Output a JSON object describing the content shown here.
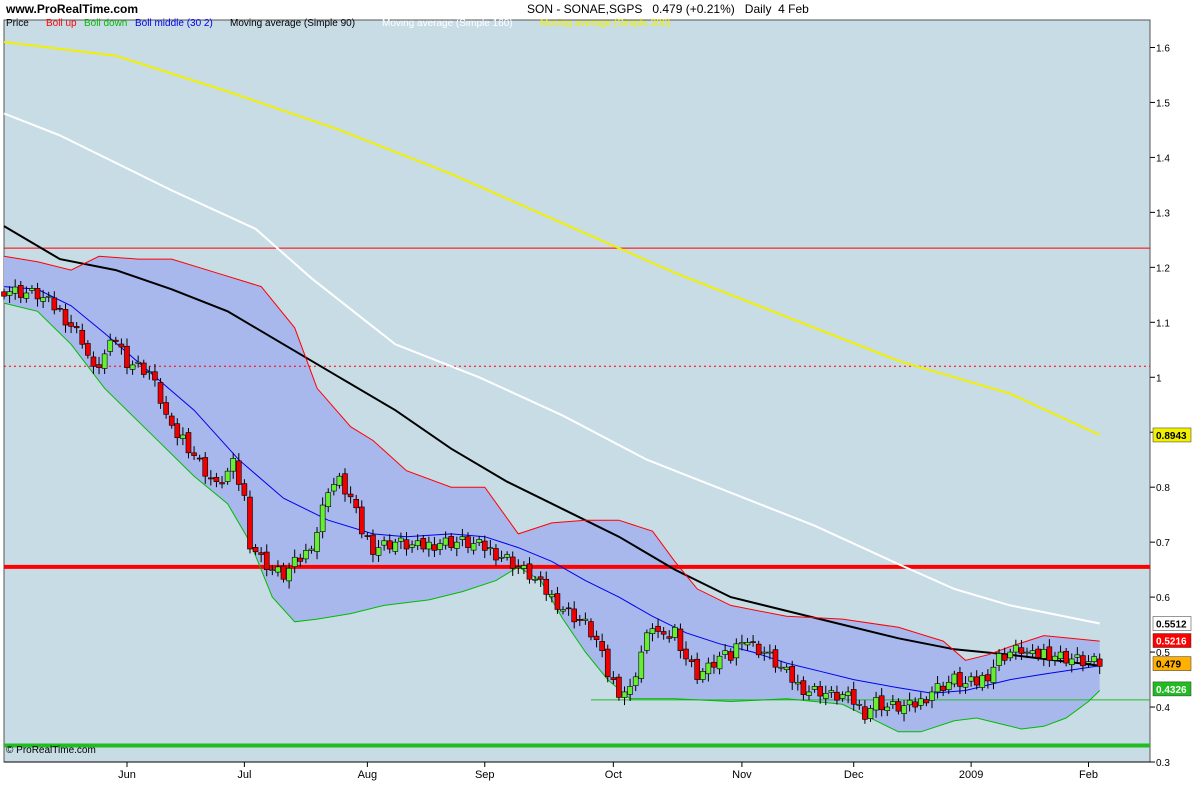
{
  "header": {
    "site": "www.ProRealTime.com",
    "title": "SON - SONAE,SGPS",
    "last": "0.479 (+0.21%)",
    "period": "Daily  4 Feb"
  },
  "watermark": "© ProRealTime.com",
  "legend": {
    "price": "Price",
    "boll_up": "Boll up",
    "boll_down": "Boll down",
    "boll_middle": "Boll middle (30 2)",
    "ma90": "Moving average (Simple 90)",
    "ma160": "Moving average (Simple 160)",
    "ma300": "Moving average (Simple 300)"
  },
  "colors": {
    "background": "#c8dce6",
    "band_fill": "#a8b8ec",
    "boll_up": "#ff0000",
    "boll_down": "#00bb00",
    "boll_middle": "#0000ee",
    "ma90": "#000000",
    "ma160": "#ffffff",
    "ma300": "#f0f000",
    "candle_up": "#66ee33",
    "candle_down": "#ee0000",
    "hline_red": "#ff0000",
    "hline_green": "#22bb22"
  },
  "chart_data": {
    "type": "candlestick",
    "ylim": [
      0.3,
      1.65
    ],
    "y_ticks": [
      "0.3",
      "0.4",
      "0.5",
      "0.6",
      "0.7",
      "0.8",
      "0.9",
      "1",
      "1.1",
      "1.2",
      "1.3",
      "1.4",
      "1.5",
      "1.6"
    ],
    "x_months": [
      {
        "label": "Jun",
        "day": 22
      },
      {
        "label": "Jul",
        "day": 43
      },
      {
        "label": "Aug",
        "day": 65
      },
      {
        "label": "Sep",
        "day": 86
      },
      {
        "label": "Oct",
        "day": 109
      },
      {
        "label": "Nov",
        "day": 132
      },
      {
        "label": "Dec",
        "day": 152
      },
      {
        "label": "2009",
        "day": 173
      },
      {
        "label": "Feb",
        "day": 194
      }
    ],
    "price_labels": {
      "ma300": "0.8943",
      "ma160": "0.5512",
      "boll_up": "0.5216",
      "last": "0.479",
      "boll_down": "0.4326"
    },
    "horizontal_lines": [
      {
        "value": 1.235,
        "style": "solid-thin",
        "color": "red"
      },
      {
        "value": 1.02,
        "style": "dotted",
        "color": "red"
      },
      {
        "value": 0.655,
        "style": "solid-thick",
        "color": "red"
      },
      {
        "value": 0.33,
        "style": "solid-thick",
        "color": "green"
      },
      {
        "value": 0.413,
        "style": "solid-thin",
        "color": "green",
        "from_day": 105
      }
    ],
    "ma300": [
      [
        0,
        1.61
      ],
      [
        20,
        1.585
      ],
      [
        40,
        1.52
      ],
      [
        60,
        1.45
      ],
      [
        80,
        1.37
      ],
      [
        100,
        1.28
      ],
      [
        120,
        1.19
      ],
      [
        140,
        1.11
      ],
      [
        160,
        1.03
      ],
      [
        180,
        0.97
      ],
      [
        196,
        0.895
      ]
    ],
    "ma160": [
      [
        0,
        1.48
      ],
      [
        10,
        1.44
      ],
      [
        20,
        1.39
      ],
      [
        30,
        1.34
      ],
      [
        45,
        1.27
      ],
      [
        55,
        1.18
      ],
      [
        70,
        1.06
      ],
      [
        85,
        1.0
      ],
      [
        100,
        0.93
      ],
      [
        115,
        0.85
      ],
      [
        130,
        0.79
      ],
      [
        145,
        0.73
      ],
      [
        160,
        0.66
      ],
      [
        170,
        0.615
      ],
      [
        180,
        0.585
      ],
      [
        196,
        0.552
      ]
    ],
    "ma90": [
      [
        0,
        1.275
      ],
      [
        10,
        1.215
      ],
      [
        20,
        1.195
      ],
      [
        30,
        1.16
      ],
      [
        40,
        1.12
      ],
      [
        50,
        1.06
      ],
      [
        60,
        1.0
      ],
      [
        70,
        0.94
      ],
      [
        80,
        0.87
      ],
      [
        90,
        0.81
      ],
      [
        100,
        0.76
      ],
      [
        110,
        0.71
      ],
      [
        120,
        0.65
      ],
      [
        130,
        0.6
      ],
      [
        140,
        0.575
      ],
      [
        150,
        0.55
      ],
      [
        160,
        0.525
      ],
      [
        170,
        0.505
      ],
      [
        180,
        0.495
      ],
      [
        196,
        0.475
      ]
    ],
    "boll_up": [
      [
        0,
        1.22
      ],
      [
        6,
        1.21
      ],
      [
        12,
        1.195
      ],
      [
        17,
        1.22
      ],
      [
        24,
        1.215
      ],
      [
        30,
        1.215
      ],
      [
        38,
        1.19
      ],
      [
        46,
        1.165
      ],
      [
        52,
        1.09
      ],
      [
        56,
        0.98
      ],
      [
        62,
        0.91
      ],
      [
        66,
        0.885
      ],
      [
        72,
        0.83
      ],
      [
        80,
        0.8
      ],
      [
        86,
        0.8
      ],
      [
        92,
        0.715
      ],
      [
        98,
        0.735
      ],
      [
        104,
        0.74
      ],
      [
        110,
        0.74
      ],
      [
        116,
        0.72
      ],
      [
        120,
        0.665
      ],
      [
        124,
        0.615
      ],
      [
        130,
        0.585
      ],
      [
        140,
        0.565
      ],
      [
        150,
        0.56
      ],
      [
        160,
        0.545
      ],
      [
        168,
        0.52
      ],
      [
        172,
        0.485
      ],
      [
        176,
        0.495
      ],
      [
        180,
        0.51
      ],
      [
        186,
        0.53
      ],
      [
        196,
        0.52
      ]
    ],
    "boll_mid": [
      [
        0,
        1.165
      ],
      [
        6,
        1.16
      ],
      [
        12,
        1.13
      ],
      [
        18,
        1.08
      ],
      [
        26,
        1.01
      ],
      [
        34,
        0.94
      ],
      [
        42,
        0.85
      ],
      [
        50,
        0.78
      ],
      [
        58,
        0.74
      ],
      [
        66,
        0.715
      ],
      [
        72,
        0.71
      ],
      [
        80,
        0.715
      ],
      [
        86,
        0.71
      ],
      [
        92,
        0.69
      ],
      [
        98,
        0.665
      ],
      [
        104,
        0.63
      ],
      [
        110,
        0.6
      ],
      [
        116,
        0.565
      ],
      [
        122,
        0.535
      ],
      [
        128,
        0.515
      ],
      [
        134,
        0.5
      ],
      [
        140,
        0.48
      ],
      [
        146,
        0.465
      ],
      [
        152,
        0.45
      ],
      [
        160,
        0.435
      ],
      [
        166,
        0.425
      ],
      [
        172,
        0.43
      ],
      [
        180,
        0.45
      ],
      [
        186,
        0.46
      ],
      [
        196,
        0.475
      ]
    ],
    "boll_dn": [
      [
        0,
        1.135
      ],
      [
        6,
        1.12
      ],
      [
        12,
        1.06
      ],
      [
        18,
        0.98
      ],
      [
        26,
        0.9
      ],
      [
        34,
        0.82
      ],
      [
        40,
        0.77
      ],
      [
        44,
        0.7
      ],
      [
        48,
        0.6
      ],
      [
        52,
        0.555
      ],
      [
        56,
        0.56
      ],
      [
        62,
        0.57
      ],
      [
        68,
        0.585
      ],
      [
        76,
        0.595
      ],
      [
        82,
        0.61
      ],
      [
        88,
        0.63
      ],
      [
        92,
        0.655
      ],
      [
        96,
        0.63
      ],
      [
        100,
        0.56
      ],
      [
        104,
        0.5
      ],
      [
        108,
        0.45
      ],
      [
        112,
        0.415
      ],
      [
        120,
        0.415
      ],
      [
        130,
        0.41
      ],
      [
        140,
        0.415
      ],
      [
        150,
        0.405
      ],
      [
        156,
        0.375
      ],
      [
        160,
        0.355
      ],
      [
        164,
        0.355
      ],
      [
        170,
        0.375
      ],
      [
        174,
        0.38
      ],
      [
        178,
        0.37
      ],
      [
        182,
        0.36
      ],
      [
        186,
        0.365
      ],
      [
        190,
        0.38
      ],
      [
        194,
        0.41
      ],
      [
        196,
        0.43
      ]
    ],
    "candle_anchors": [
      [
        0,
        1.16
      ],
      [
        6,
        1.15
      ],
      [
        10,
        1.12
      ],
      [
        14,
        1.07
      ],
      [
        16,
        1.01
      ],
      [
        18,
        1.04
      ],
      [
        20,
        1.07
      ],
      [
        22,
        1.03
      ],
      [
        26,
        1.01
      ],
      [
        28,
        0.96
      ],
      [
        30,
        0.9
      ],
      [
        32,
        0.89
      ],
      [
        36,
        0.83
      ],
      [
        38,
        0.8
      ],
      [
        41,
        0.84
      ],
      [
        43,
        0.78
      ],
      [
        44,
        0.7
      ],
      [
        46,
        0.67
      ],
      [
        48,
        0.65
      ],
      [
        50,
        0.64
      ],
      [
        52,
        0.66
      ],
      [
        54,
        0.68
      ],
      [
        56,
        0.72
      ],
      [
        58,
        0.8
      ],
      [
        60,
        0.81
      ],
      [
        62,
        0.78
      ],
      [
        64,
        0.72
      ],
      [
        66,
        0.69
      ],
      [
        70,
        0.7
      ],
      [
        74,
        0.69
      ],
      [
        78,
        0.7
      ],
      [
        82,
        0.7
      ],
      [
        86,
        0.69
      ],
      [
        90,
        0.67
      ],
      [
        94,
        0.64
      ],
      [
        98,
        0.6
      ],
      [
        100,
        0.58
      ],
      [
        104,
        0.55
      ],
      [
        106,
        0.52
      ],
      [
        108,
        0.46
      ],
      [
        110,
        0.43
      ],
      [
        112,
        0.43
      ],
      [
        114,
        0.5
      ],
      [
        116,
        0.55
      ],
      [
        118,
        0.52
      ],
      [
        120,
        0.54
      ],
      [
        122,
        0.49
      ],
      [
        124,
        0.46
      ],
      [
        126,
        0.47
      ],
      [
        128,
        0.49
      ],
      [
        130,
        0.49
      ],
      [
        132,
        0.53
      ],
      [
        134,
        0.51
      ],
      [
        136,
        0.5
      ],
      [
        138,
        0.48
      ],
      [
        140,
        0.46
      ],
      [
        142,
        0.44
      ],
      [
        144,
        0.43
      ],
      [
        146,
        0.43
      ],
      [
        148,
        0.42
      ],
      [
        150,
        0.42
      ],
      [
        152,
        0.41
      ],
      [
        154,
        0.39
      ],
      [
        156,
        0.41
      ],
      [
        158,
        0.4
      ],
      [
        160,
        0.4
      ],
      [
        162,
        0.4
      ],
      [
        164,
        0.41
      ],
      [
        166,
        0.43
      ],
      [
        168,
        0.44
      ],
      [
        170,
        0.45
      ],
      [
        172,
        0.44
      ],
      [
        174,
        0.445
      ],
      [
        176,
        0.46
      ],
      [
        178,
        0.49
      ],
      [
        180,
        0.5
      ],
      [
        182,
        0.505
      ],
      [
        184,
        0.49
      ],
      [
        186,
        0.5
      ],
      [
        188,
        0.495
      ],
      [
        190,
        0.49
      ],
      [
        192,
        0.485
      ],
      [
        194,
        0.48
      ],
      [
        196,
        0.479
      ]
    ]
  }
}
